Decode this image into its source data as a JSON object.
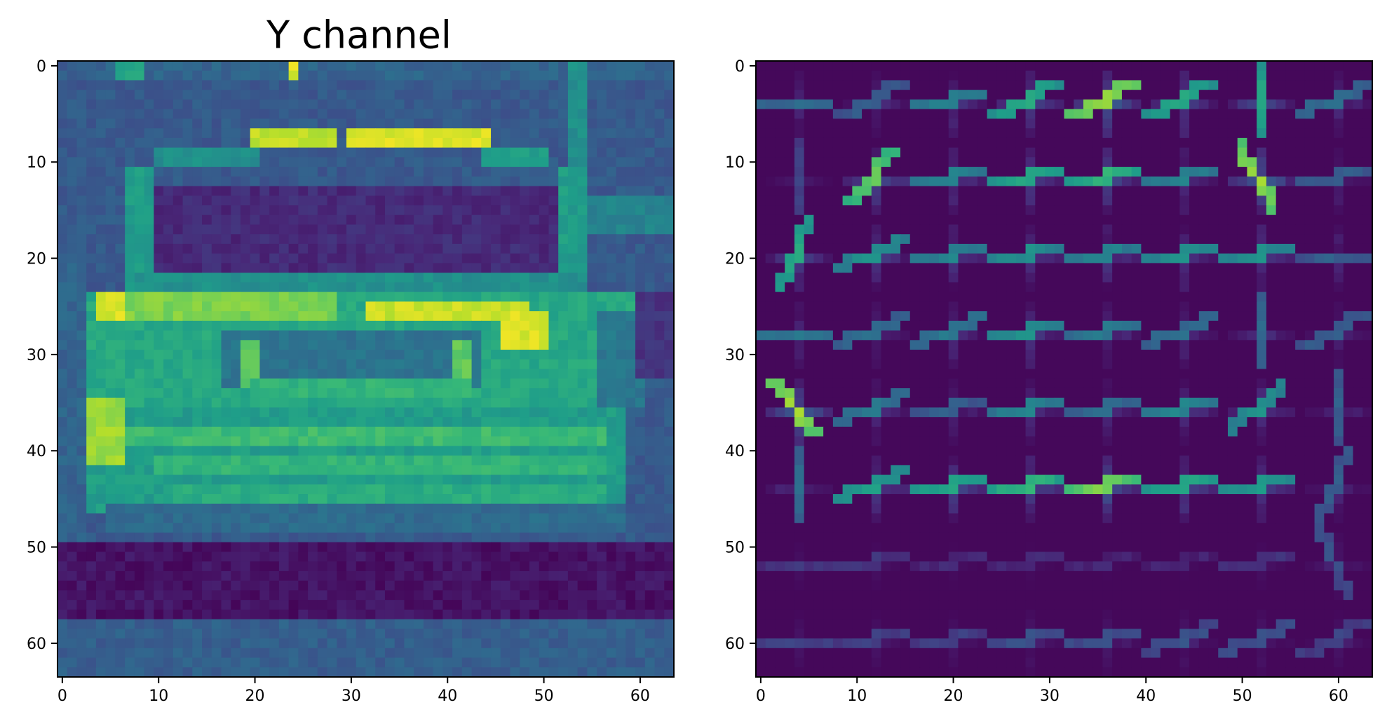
{
  "figure": {
    "background": "#ffffff",
    "colormap": "viridis",
    "colormap_stops": [
      "#440154",
      "#482878",
      "#3e4a89",
      "#31688e",
      "#26828e",
      "#1f9e89",
      "#35b779",
      "#6ece58",
      "#b5de2b",
      "#fde725"
    ]
  },
  "chart_data": [
    {
      "type": "heatmap",
      "title": "Y channel",
      "xlabel": "",
      "ylabel": "",
      "xlim": [
        -0.5,
        63.5
      ],
      "ylim": [
        63.5,
        -0.5
      ],
      "xticks": [
        0,
        10,
        20,
        30,
        40,
        50,
        60
      ],
      "yticks": [
        0,
        10,
        20,
        30,
        40,
        50,
        60
      ],
      "grid": false,
      "image_size": [
        64,
        64
      ],
      "value_scale": "0-1 (intensity)",
      "background_level": 0.28,
      "regions": [
        {
          "kind": "rect",
          "x": [
            0,
            63
          ],
          "y": [
            50,
            57
          ],
          "value": 0.05,
          "label": "dark road"
        },
        {
          "kind": "rect",
          "x": [
            8,
            54
          ],
          "y": [
            13,
            21
          ],
          "value": 0.12,
          "label": "rear window"
        },
        {
          "kind": "rect",
          "x": [
            4,
            63
          ],
          "y": [
            0,
            1
          ],
          "value": 0.32
        },
        {
          "kind": "rect",
          "x": [
            6,
            8
          ],
          "y": [
            0,
            1
          ],
          "value": 0.6
        },
        {
          "kind": "rect",
          "x": [
            24,
            24
          ],
          "y": [
            0,
            1
          ],
          "value": 0.95
        },
        {
          "kind": "rect",
          "x": [
            53,
            54
          ],
          "y": [
            0,
            25
          ],
          "value": 0.5
        },
        {
          "kind": "rect",
          "x": [
            55,
            63
          ],
          "y": [
            14,
            17
          ],
          "value": 0.45
        },
        {
          "kind": "rect",
          "x": [
            20,
            28
          ],
          "y": [
            7,
            8
          ],
          "value": 0.9,
          "label": "brake light"
        },
        {
          "kind": "rect",
          "x": [
            30,
            44
          ],
          "y": [
            7,
            8
          ],
          "value": 0.95,
          "label": "brake light"
        },
        {
          "kind": "rect",
          "x": [
            10,
            20
          ],
          "y": [
            9,
            10
          ],
          "value": 0.5
        },
        {
          "kind": "rect",
          "x": [
            44,
            50
          ],
          "y": [
            9,
            10
          ],
          "value": 0.55
        },
        {
          "kind": "rect",
          "x": [
            7,
            9
          ],
          "y": [
            11,
            24
          ],
          "value": 0.55,
          "label": "left pillar"
        },
        {
          "kind": "rect",
          "x": [
            52,
            54
          ],
          "y": [
            11,
            24
          ],
          "value": 0.55,
          "label": "right pillar"
        },
        {
          "kind": "rect",
          "x": [
            8,
            54
          ],
          "y": [
            22,
            24
          ],
          "value": 0.5
        },
        {
          "kind": "rect",
          "x": [
            3,
            60
          ],
          "y": [
            24,
            35
          ],
          "value": 0.6,
          "label": "trunk"
        },
        {
          "kind": "rect",
          "x": [
            4,
            6
          ],
          "y": [
            24,
            26
          ],
          "value": 0.95,
          "label": "tail light left"
        },
        {
          "kind": "rect",
          "x": [
            7,
            28
          ],
          "y": [
            24,
            26
          ],
          "value": 0.8
        },
        {
          "kind": "rect",
          "x": [
            32,
            48
          ],
          "y": [
            25,
            26
          ],
          "value": 0.92
        },
        {
          "kind": "rect",
          "x": [
            46,
            50
          ],
          "y": [
            26,
            29
          ],
          "value": 0.95,
          "label": "tail light right"
        },
        {
          "kind": "rect",
          "x": [
            17,
            43
          ],
          "y": [
            28,
            33
          ],
          "value": 0.38,
          "label": "plate recess"
        },
        {
          "kind": "rect",
          "x": [
            19,
            20
          ],
          "y": [
            29,
            33
          ],
          "value": 0.75
        },
        {
          "kind": "rect",
          "x": [
            41,
            42
          ],
          "y": [
            29,
            33
          ],
          "value": 0.75
        },
        {
          "kind": "rect",
          "x": [
            20,
            42
          ],
          "y": [
            33,
            34
          ],
          "value": 0.65
        },
        {
          "kind": "rect",
          "x": [
            56,
            60
          ],
          "y": [
            26,
            35
          ],
          "value": 0.4
        },
        {
          "kind": "rect",
          "x": [
            60,
            63
          ],
          "y": [
            24,
            32
          ],
          "value": 0.15
        },
        {
          "kind": "rect",
          "x": [
            2,
            58
          ],
          "y": [
            36,
            46
          ],
          "value": 0.55,
          "label": "bumper"
        },
        {
          "kind": "rect",
          "x": [
            2,
            6
          ],
          "y": [
            35,
            41
          ],
          "value": 0.85
        },
        {
          "kind": "rect",
          "x": [
            7,
            56
          ],
          "y": [
            38,
            39
          ],
          "value": 0.68
        },
        {
          "kind": "rect",
          "x": [
            10,
            56
          ],
          "y": [
            41,
            42
          ],
          "value": 0.65
        },
        {
          "kind": "rect",
          "x": [
            12,
            56
          ],
          "y": [
            44,
            45
          ],
          "value": 0.62
        },
        {
          "kind": "rect",
          "x": [
            5,
            58
          ],
          "y": [
            46,
            48
          ],
          "value": 0.35
        },
        {
          "kind": "rect",
          "x": [
            0,
            63
          ],
          "y": [
            58,
            63
          ],
          "value": 0.3
        },
        {
          "kind": "rect",
          "x": [
            0,
            2
          ],
          "y": [
            21,
            49
          ],
          "value": 0.32
        }
      ]
    },
    {
      "type": "heatmap",
      "title": "",
      "xlabel": "",
      "ylabel": "",
      "xlim": [
        -0.5,
        63.5
      ],
      "ylim": [
        63.5,
        -0.5
      ],
      "xticks": [
        0,
        10,
        20,
        30,
        40,
        50,
        60
      ],
      "yticks": [
        0,
        10,
        20,
        30,
        40,
        50,
        60
      ],
      "grid": false,
      "image_size": [
        64,
        64
      ],
      "cell_grid": [
        8,
        8
      ],
      "cell_size": 8,
      "value_scale": "0-1 (HOG gradient magnitude)",
      "cell_strengths": [
        [
          0.35,
          0.3,
          0.45,
          0.6,
          0.85,
          0.6,
          0.6,
          0.35
        ],
        [
          0.2,
          0.75,
          0.45,
          0.6,
          0.65,
          0.45,
          0.85,
          0.3
        ],
        [
          0.6,
          0.5,
          0.45,
          0.5,
          0.45,
          0.5,
          0.5,
          0.3
        ],
        [
          0.4,
          0.35,
          0.4,
          0.5,
          0.4,
          0.35,
          0.35,
          0.3
        ],
        [
          0.85,
          0.4,
          0.3,
          0.45,
          0.35,
          0.45,
          0.5,
          0.3
        ],
        [
          0.35,
          0.55,
          0.6,
          0.65,
          0.8,
          0.6,
          0.55,
          0.3
        ],
        [
          0.15,
          0.15,
          0.12,
          0.12,
          0.1,
          0.1,
          0.15,
          0.25
        ],
        [
          0.2,
          0.2,
          0.2,
          0.25,
          0.25,
          0.25,
          0.25,
          0.2
        ]
      ],
      "cell_orientations_deg": [
        [
          0,
          30,
          10,
          30,
          30,
          30,
          90,
          20
        ],
        [
          90,
          50,
          15,
          15,
          15,
          15,
          120,
          5
        ],
        [
          70,
          20,
          15,
          15,
          15,
          15,
          15,
          0
        ],
        [
          0,
          20,
          20,
          15,
          15,
          20,
          90,
          30
        ],
        [
          130,
          20,
          10,
          15,
          10,
          15,
          40,
          90
        ],
        [
          90,
          20,
          15,
          15,
          15,
          15,
          15,
          70
        ],
        [
          0,
          15,
          10,
          10,
          10,
          10,
          15,
          110
        ],
        [
          0,
          15,
          15,
          15,
          15,
          20,
          20,
          30
        ]
      ]
    }
  ]
}
